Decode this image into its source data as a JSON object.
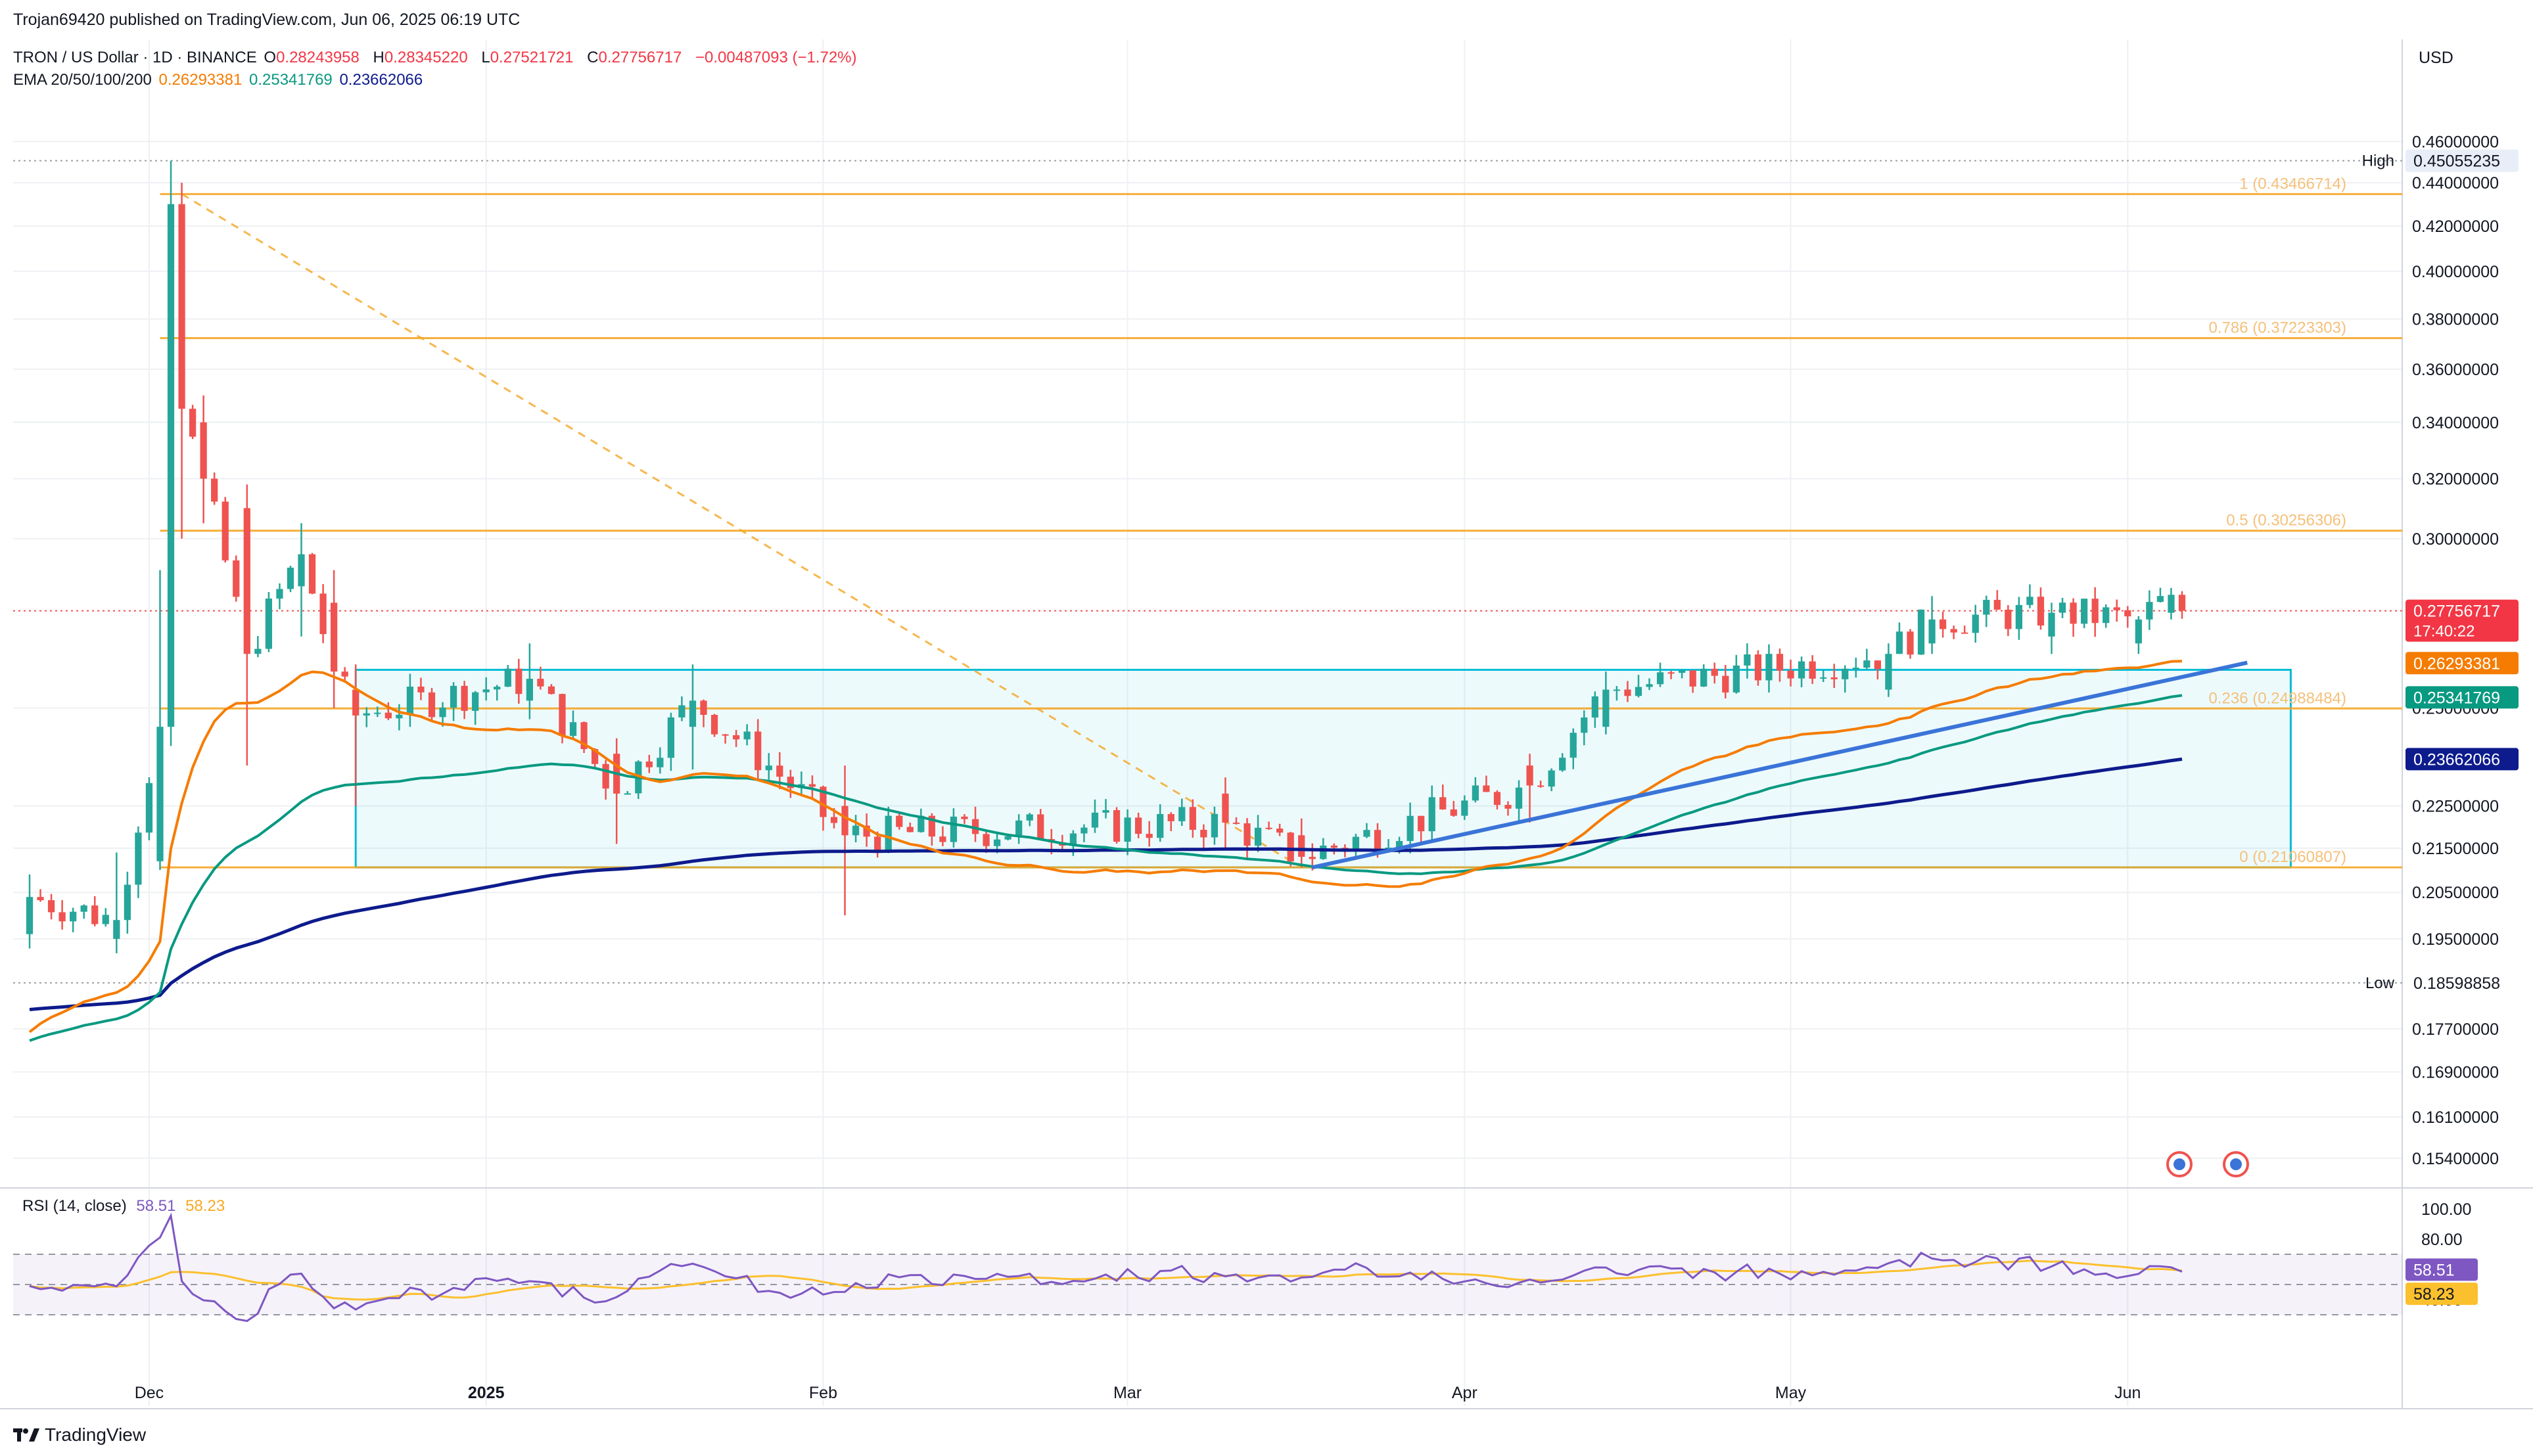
{
  "header": {
    "published": "Trojan69420 published on TradingView.com, Jun 06, 2025 06:19 UTC",
    "symbol": "TRON / US Dollar · 1D · BINANCE",
    "ohlc": {
      "o_label": "O",
      "o": "0.28243958",
      "h_label": "H",
      "h": "0.28345220",
      "l_label": "L",
      "l": "0.27521721",
      "c_label": "C",
      "c": "0.27756717",
      "change": "−0.00487093 (−1.72%)"
    },
    "ema_label": "EMA 20/50/100/200",
    "ema_values": [
      "0.26293381",
      "0.25341769",
      "0.23662066"
    ]
  },
  "currency": "USD",
  "colors": {
    "up": "#26a69a",
    "down": "#ef5350",
    "ema20": "#f57c00",
    "ema50": "#089981",
    "ema100": "#0d47a1",
    "ema200": "#0d1b8c",
    "fib": "#f5a623",
    "trend": "#3a74d8",
    "box": "#00bcd4",
    "rsi": "#7e57c2",
    "rsi_ma": "#fbc02d"
  },
  "price_axis": {
    "ticks": [
      "0.46000000",
      "0.44000000",
      "0.42000000",
      "0.40000000",
      "0.38000000",
      "0.36000000",
      "0.34000000",
      "0.32000000",
      "0.30000000",
      "0.25000000",
      "0.22500000",
      "0.21500000",
      "0.20500000",
      "0.19500000",
      "0.17700000",
      "0.16900000",
      "0.16100000",
      "0.15400000"
    ],
    "high_label": "High",
    "high_value": "0.45055235",
    "low_label": "Low",
    "low_value": "0.18598858",
    "last_price": "0.27756717",
    "countdown": "17:40:22",
    "ema20_badge": "0.26293381",
    "ema50_badge": "0.25341769",
    "ema200_badge": "0.23662066"
  },
  "fib_levels": [
    {
      "label": "1 (0.43466714)",
      "price": 0.43466714
    },
    {
      "label": "0.786 (0.37223303)",
      "price": 0.37223303
    },
    {
      "label": "0.5 (0.30256306)",
      "price": 0.30256306
    },
    {
      "label": "0.236 (0.24988484)",
      "price": 0.24988484
    },
    {
      "label": "0 (0.21060807)",
      "price": 0.21060807
    }
  ],
  "time_axis": [
    "Dec",
    "2025",
    "Feb",
    "Mar",
    "Apr",
    "May",
    "Jun"
  ],
  "rsi": {
    "label": "RSI (14, close)",
    "value": "58.51",
    "ma": "58.23",
    "ticks": [
      "100.00",
      "80.00",
      "40.00"
    ],
    "badge_value": "58.51",
    "badge_ma": "58.23"
  },
  "footer": {
    "logo_text": "TradingView"
  },
  "chart_data": {
    "type": "candlestick",
    "title": "TRON / US Dollar · 1D · BINANCE",
    "x_range": [
      "2024-11-20",
      "2025-06-06"
    ],
    "y_range": [
      0.15,
      0.465
    ],
    "events": [
      {
        "date": "2024-11-20",
        "o": 0.196,
        "h": 0.209,
        "l": 0.193,
        "c": 0.204
      },
      {
        "date": "2024-11-28",
        "o": 0.195,
        "h": 0.214,
        "l": 0.192,
        "c": 0.199
      },
      {
        "date": "2024-12-02",
        "o": 0.212,
        "h": 0.29,
        "l": 0.21,
        "c": 0.245
      },
      {
        "date": "2024-12-03",
        "o": 0.245,
        "h": 0.4506,
        "l": 0.24,
        "c": 0.43
      },
      {
        "date": "2024-12-04",
        "o": 0.43,
        "h": 0.44,
        "l": 0.3,
        "c": 0.345
      },
      {
        "date": "2024-12-06",
        "o": 0.34,
        "h": 0.35,
        "l": 0.305,
        "c": 0.32
      },
      {
        "date": "2024-12-10",
        "o": 0.31,
        "h": 0.318,
        "l": 0.235,
        "c": 0.265
      },
      {
        "date": "2024-12-15",
        "o": 0.285,
        "h": 0.305,
        "l": 0.27,
        "c": 0.295
      },
      {
        "date": "2024-12-18",
        "o": 0.28,
        "h": 0.29,
        "l": 0.25,
        "c": 0.26
      },
      {
        "date": "2024-12-20",
        "o": 0.255,
        "h": 0.262,
        "l": 0.225,
        "c": 0.248
      },
      {
        "date": "2025-01-05",
        "o": 0.252,
        "h": 0.268,
        "l": 0.247,
        "c": 0.258
      },
      {
        "date": "2025-01-13",
        "o": 0.238,
        "h": 0.242,
        "l": 0.216,
        "c": 0.228
      },
      {
        "date": "2025-01-20",
        "o": 0.245,
        "h": 0.262,
        "l": 0.234,
        "c": 0.252
      },
      {
        "date": "2025-02-03",
        "o": 0.225,
        "h": 0.235,
        "l": 0.2,
        "c": 0.218
      },
      {
        "date": "2025-03-10",
        "o": 0.228,
        "h": 0.232,
        "l": 0.215,
        "c": 0.221
      },
      {
        "date": "2025-03-17",
        "o": 0.218,
        "h": 0.222,
        "l": 0.2106,
        "c": 0.213
      },
      {
        "date": "2025-04-07",
        "o": 0.235,
        "h": 0.238,
        "l": 0.221,
        "c": 0.23
      },
      {
        "date": "2025-04-14",
        "o": 0.245,
        "h": 0.26,
        "l": 0.243,
        "c": 0.255
      },
      {
        "date": "2025-05-10",
        "o": 0.255,
        "h": 0.268,
        "l": 0.253,
        "c": 0.265
      },
      {
        "date": "2025-05-14",
        "o": 0.268,
        "h": 0.282,
        "l": 0.265,
        "c": 0.275
      },
      {
        "date": "2025-05-25",
        "o": 0.27,
        "h": 0.28,
        "l": 0.265,
        "c": 0.277
      },
      {
        "date": "2025-06-02",
        "o": 0.268,
        "h": 0.276,
        "l": 0.265,
        "c": 0.275
      },
      {
        "date": "2025-06-05",
        "o": 0.277,
        "h": 0.2845,
        "l": 0.275,
        "c": 0.2824
      },
      {
        "date": "2025-06-06",
        "o": 0.2824,
        "h": 0.2835,
        "l": 0.2752,
        "c": 0.2776
      }
    ],
    "ema": {
      "ema20_last": 0.26293381,
      "ema50_last": 0.25341769,
      "ema200_last": 0.23662066
    },
    "range_box": {
      "from": "2024-12-20",
      "to": "2025-06-16",
      "top": 0.2605,
      "bottom": 0.2106
    },
    "trendline": {
      "from_date": "2025-03-18",
      "from_price": 0.2106,
      "to_date": "2025-06-12",
      "to_price": 0.2625
    },
    "rsi_range": [
      0,
      100
    ],
    "rsi_last": 58.51,
    "rsi_ma_last": 58.23,
    "grid": true,
    "legend": "top-left"
  }
}
